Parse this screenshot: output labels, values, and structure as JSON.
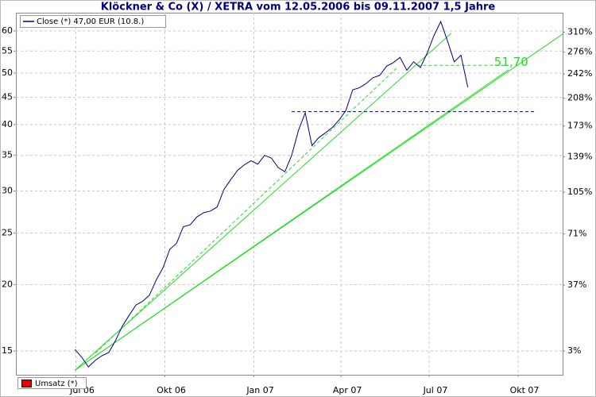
{
  "chart_data": {
    "type": "line",
    "title": "Klöckner & Co (X) / XETRA vom 12.05.2006 bis 09.11.2007 1,5 Jahre",
    "x": [
      "2006-06-30",
      "2006-07-07",
      "2006-07-14",
      "2006-07-21",
      "2006-07-28",
      "2006-08-04",
      "2006-08-11",
      "2006-08-18",
      "2006-08-25",
      "2006-09-01",
      "2006-09-08",
      "2006-09-15",
      "2006-09-22",
      "2006-09-29",
      "2006-10-06",
      "2006-10-13",
      "2006-10-20",
      "2006-10-27",
      "2006-11-03",
      "2006-11-10",
      "2006-11-17",
      "2006-11-24",
      "2006-12-01",
      "2006-12-08",
      "2006-12-15",
      "2006-12-22",
      "2006-12-29",
      "2007-01-05",
      "2007-01-12",
      "2007-01-19",
      "2007-01-26",
      "2007-02-02",
      "2007-02-09",
      "2007-02-16",
      "2007-02-23",
      "2007-03-02",
      "2007-03-09",
      "2007-03-16",
      "2007-03-23",
      "2007-03-30",
      "2007-04-06",
      "2007-04-13",
      "2007-04-20",
      "2007-04-27",
      "2007-05-04",
      "2007-05-11",
      "2007-05-18",
      "2007-05-25",
      "2007-06-01",
      "2007-06-08",
      "2007-06-15",
      "2007-06-22",
      "2007-06-29",
      "2007-07-06",
      "2007-07-13",
      "2007-07-20",
      "2007-07-27",
      "2007-08-03",
      "2007-08-10"
    ],
    "series": [
      {
        "name": "Close (*) 47,00 EUR (10.8.)",
        "color": "#000080",
        "values": [
          15.1,
          14.6,
          14.0,
          14.4,
          14.7,
          14.9,
          15.7,
          16.7,
          17.5,
          18.3,
          18.6,
          19.1,
          20.4,
          21.5,
          23.3,
          23.9,
          25.7,
          25.9,
          26.8,
          27.3,
          27.5,
          28.0,
          30.2,
          31.5,
          32.8,
          33.6,
          34.2,
          33.7,
          35.0,
          34.6,
          33.2,
          32.6,
          35.0,
          39.0,
          42.1,
          36.5,
          37.8,
          38.6,
          39.5,
          40.8,
          42.5,
          46.5,
          46.9,
          47.8,
          49.0,
          49.5,
          51.5,
          52.3,
          53.5,
          50.6,
          52.5,
          51.2,
          54.5,
          58.8,
          62.5,
          57.5,
          52.5,
          54.0,
          47.0
        ]
      }
    ],
    "volume_legend": {
      "name": "Umsatz (*)",
      "color": "#ee0000"
    },
    "xlim": [
      "2006-04-30",
      "2007-11-16"
    ],
    "xticks": [
      {
        "value": "2006-07-01",
        "label": "Jul 06"
      },
      {
        "value": "2006-10-01",
        "label": "Okt 06"
      },
      {
        "value": "2007-01-01",
        "label": "Jan 07"
      },
      {
        "value": "2007-04-01",
        "label": "Apr 07"
      },
      {
        "value": "2007-07-01",
        "label": "Jul 07"
      },
      {
        "value": "2007-10-01",
        "label": "Okt 07"
      }
    ],
    "ylim": [
      13.53,
      64.94
    ],
    "yticks": [
      15,
      20,
      25,
      30,
      35,
      40,
      45,
      50,
      55,
      60
    ],
    "log_y": true,
    "y2lim": [
      -7.1,
      346.0
    ],
    "y2ticks": [
      {
        "value": 3,
        "label": "3%"
      },
      {
        "value": 37,
        "label": "37%"
      },
      {
        "value": 71,
        "label": "71%"
      },
      {
        "value": 105,
        "label": "105%"
      },
      {
        "value": 139,
        "label": "139%"
      },
      {
        "value": 173,
        "label": "173%"
      },
      {
        "value": 208,
        "label": "208%"
      },
      {
        "value": 242,
        "label": "242%"
      },
      {
        "value": 276,
        "label": "276%"
      },
      {
        "value": 310,
        "label": "310%"
      }
    ],
    "log_y2": true,
    "grid": true,
    "trendlines": [
      {
        "from": [
          "2006-06-30",
          13.8
        ],
        "to": [
          "2007-11-16",
          59.2
        ],
        "color": "#22dd22",
        "dashed": false
      },
      {
        "from": [
          "2006-06-30",
          13.8
        ],
        "to": [
          "2007-09-21",
          50.7
        ],
        "color": "#22dd22",
        "dashed": false
      },
      {
        "from": [
          "2006-06-30",
          13.8
        ],
        "to": [
          "2007-07-24",
          59.4
        ],
        "color": "#22dd22",
        "dashed": false
      },
      {
        "from": [
          "2006-07-21",
          14.85
        ],
        "to": [
          "2007-05-29",
          51.2
        ],
        "color": "#22dd22",
        "dashed": true
      }
    ],
    "levels": [
      {
        "value": 51.7,
        "label": "51,70",
        "from": "2007-06-19",
        "to": "2007-09-21",
        "color": "#22dd22"
      },
      {
        "value": 42.3,
        "from": "2007-02-09",
        "to": "2007-10-20",
        "color": "#000080"
      }
    ]
  }
}
